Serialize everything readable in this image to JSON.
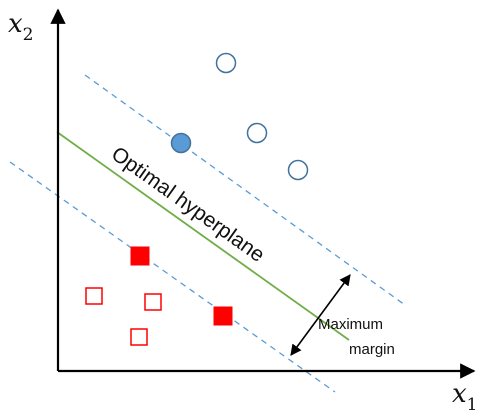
{
  "axes": {
    "x_label": "x",
    "x_sub": "1",
    "y_label": "x",
    "y_sub": "2"
  },
  "hyperplane_label": "Optimal hyperplane",
  "margin_label": {
    "line1": "Maximum",
    "line2": "margin"
  },
  "colors": {
    "axis": "#000000",
    "hyperplane": "#70ad47",
    "margin_lines": "#5b9bd5",
    "circle": "#41719c",
    "circle_fill": "#5b9bd5",
    "square": "#ff0000"
  },
  "points": {
    "circles": [
      {
        "filled": false
      },
      {
        "filled": true
      },
      {
        "filled": false
      },
      {
        "filled": false
      }
    ],
    "squares": [
      {
        "filled": true
      },
      {
        "filled": false
      },
      {
        "filled": false
      },
      {
        "filled": false
      },
      {
        "filled": true
      }
    ]
  }
}
